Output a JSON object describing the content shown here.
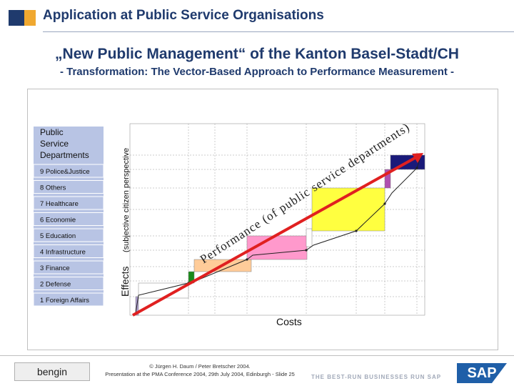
{
  "header": {
    "title": "Application at Public Service Organisations",
    "headline": "„New Public Management“ of the Kanton Basel-Stadt/CH",
    "subheadline": "- Transformation: The Vector-Based Approach to Performance Measurement -"
  },
  "figure": {
    "legend_title": [
      "Public",
      "Service",
      "Departments"
    ],
    "departments": [
      {
        "label": "9 Police&Justice",
        "color": "#1a1a7a"
      },
      {
        "label": "8 Others",
        "color": "#b050b0"
      },
      {
        "label": "7 Healthcare",
        "color": "#ffff40"
      },
      {
        "label": "6 Economie",
        "color": "#ffffff"
      },
      {
        "label": "5 Education",
        "color": "#ff99cc"
      },
      {
        "label": "4 Infrastructure",
        "color": "#ffcc99"
      },
      {
        "label": "3 Finance",
        "color": "#1a8a1a"
      },
      {
        "label": "2 Defense",
        "color": "#ffffff"
      },
      {
        "label": "1 Foreign Affairs",
        "color": "#b0a0d0"
      }
    ],
    "y_axis_label_main": "Effects",
    "y_axis_label_sub": "(subjective citizen perspective",
    "x_axis_label": "Costs",
    "arrow_label": "Performance (of public service departments)"
  },
  "footer": {
    "logo_text": "bengin",
    "copyright_line1": "© Jürgen H. Daum / Peter Bretscher 2004.",
    "copyright_line2": "Presentation at the PMA Conference 2004, 29th July 2004, Edinburgh - Slide 25",
    "tagline": "THE BEST-RUN BUSINESSES RUN SAP",
    "sap_logo_text": "SAP"
  },
  "colors": {
    "title": "#1f3a6d",
    "arrow": "#e02020",
    "legend_bg": "#b8c4e4",
    "grid": "#9a9a9a"
  }
}
